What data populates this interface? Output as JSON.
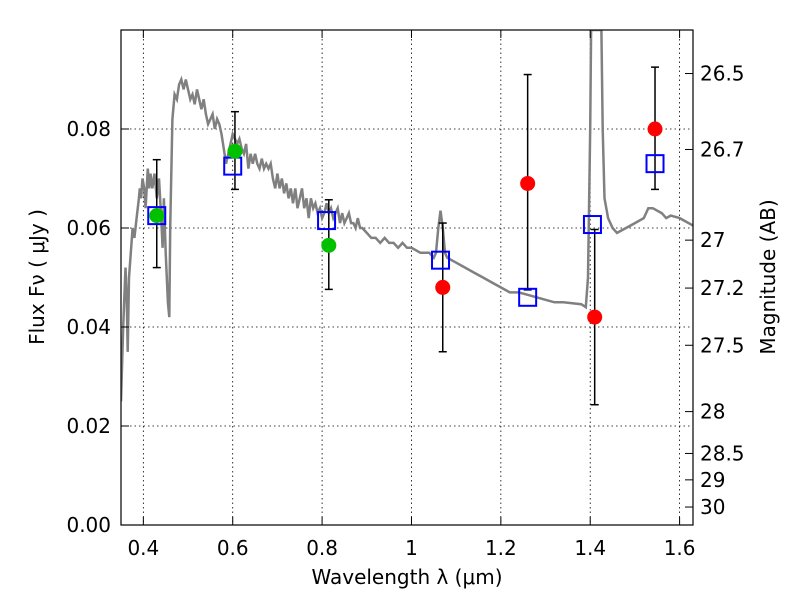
{
  "chart_data": {
    "type": "scatter",
    "xlabel": "Wavelength  λ (μm)",
    "ylabel": "Flux  Fν  ( μJy )",
    "ylabel2": "Magnitude (AB)",
    "xlim": [
      0.35,
      1.63
    ],
    "ylim": [
      0.0,
      0.1
    ],
    "grid": true,
    "x_ticks": [
      {
        "value": 0.4,
        "label": "0.4"
      },
      {
        "value": 0.6,
        "label": "0.6"
      },
      {
        "value": 0.8,
        "label": "0.8"
      },
      {
        "value": 1.0,
        "label": "1"
      },
      {
        "value": 1.2,
        "label": "1.2"
      },
      {
        "value": 1.4,
        "label": "1.4"
      },
      {
        "value": 1.6,
        "label": "1.6"
      }
    ],
    "y_ticks": [
      {
        "value": 0.0,
        "label": "0.00"
      },
      {
        "value": 0.02,
        "label": "0.02"
      },
      {
        "value": 0.04,
        "label": "0.04"
      },
      {
        "value": 0.06,
        "label": "0.06"
      },
      {
        "value": 0.08,
        "label": "0.08"
      }
    ],
    "mag_ticks": [
      {
        "value": 26.5,
        "label": "26.5"
      },
      {
        "value": 26.7,
        "label": "26.7"
      },
      {
        "value": 27.0,
        "label": "27"
      },
      {
        "value": 27.2,
        "label": "27.2"
      },
      {
        "value": 27.5,
        "label": "27.5"
      },
      {
        "value": 28.0,
        "label": "28"
      },
      {
        "value": 28.5,
        "label": "28.5"
      },
      {
        "value": 29.0,
        "label": "29"
      },
      {
        "value": 30.0,
        "label": "30"
      }
    ],
    "model_spectrum": {
      "color": "#808080",
      "points": [
        [
          0.35,
          0.025
        ],
        [
          0.355,
          0.04
        ],
        [
          0.36,
          0.052
        ],
        [
          0.363,
          0.045
        ],
        [
          0.365,
          0.035
        ],
        [
          0.368,
          0.05
        ],
        [
          0.372,
          0.055
        ],
        [
          0.376,
          0.06
        ],
        [
          0.38,
          0.058
        ],
        [
          0.385,
          0.062
        ],
        [
          0.39,
          0.066
        ],
        [
          0.392,
          0.068
        ],
        [
          0.395,
          0.066
        ],
        [
          0.398,
          0.07
        ],
        [
          0.402,
          0.068
        ],
        [
          0.405,
          0.064
        ],
        [
          0.41,
          0.072
        ],
        [
          0.413,
          0.068
        ],
        [
          0.416,
          0.071
        ],
        [
          0.42,
          0.068
        ],
        [
          0.425,
          0.071
        ],
        [
          0.43,
          0.066
        ],
        [
          0.435,
          0.07
        ],
        [
          0.44,
          0.062
        ],
        [
          0.443,
          0.056
        ],
        [
          0.446,
          0.066
        ],
        [
          0.45,
          0.055
        ],
        [
          0.455,
          0.045
        ],
        [
          0.458,
          0.042
        ],
        [
          0.46,
          0.06
        ],
        [
          0.465,
          0.082
        ],
        [
          0.47,
          0.087
        ],
        [
          0.475,
          0.086
        ],
        [
          0.48,
          0.089
        ],
        [
          0.485,
          0.09
        ],
        [
          0.49,
          0.088
        ],
        [
          0.495,
          0.09
        ],
        [
          0.5,
          0.088
        ],
        [
          0.505,
          0.086
        ],
        [
          0.51,
          0.087
        ],
        [
          0.515,
          0.085
        ],
        [
          0.52,
          0.088
        ],
        [
          0.525,
          0.086
        ],
        [
          0.53,
          0.084
        ],
        [
          0.535,
          0.086
        ],
        [
          0.54,
          0.083
        ],
        [
          0.545,
          0.081
        ],
        [
          0.55,
          0.082
        ],
        [
          0.555,
          0.083
        ],
        [
          0.56,
          0.08
        ],
        [
          0.565,
          0.082
        ],
        [
          0.57,
          0.081
        ],
        [
          0.575,
          0.079
        ],
        [
          0.58,
          0.076
        ],
        [
          0.585,
          0.073
        ],
        [
          0.59,
          0.075
        ],
        [
          0.595,
          0.077
        ],
        [
          0.6,
          0.079
        ],
        [
          0.605,
          0.078
        ],
        [
          0.61,
          0.077
        ],
        [
          0.615,
          0.078
        ],
        [
          0.62,
          0.076
        ],
        [
          0.625,
          0.075
        ],
        [
          0.63,
          0.077
        ],
        [
          0.635,
          0.072
        ],
        [
          0.64,
          0.075
        ],
        [
          0.645,
          0.073
        ],
        [
          0.65,
          0.075
        ],
        [
          0.655,
          0.073
        ],
        [
          0.66,
          0.072
        ],
        [
          0.665,
          0.074
        ],
        [
          0.67,
          0.072
        ],
        [
          0.675,
          0.073
        ],
        [
          0.68,
          0.072
        ],
        [
          0.685,
          0.073
        ],
        [
          0.69,
          0.07
        ],
        [
          0.695,
          0.068
        ],
        [
          0.7,
          0.071
        ],
        [
          0.705,
          0.068
        ],
        [
          0.71,
          0.07
        ],
        [
          0.715,
          0.067
        ],
        [
          0.72,
          0.069
        ],
        [
          0.725,
          0.066
        ],
        [
          0.73,
          0.068
        ],
        [
          0.735,
          0.065
        ],
        [
          0.74,
          0.068
        ],
        [
          0.745,
          0.064
        ],
        [
          0.75,
          0.066
        ],
        [
          0.755,
          0.068
        ],
        [
          0.76,
          0.064
        ],
        [
          0.765,
          0.066
        ],
        [
          0.77,
          0.062
        ],
        [
          0.775,
          0.066
        ],
        [
          0.78,
          0.064
        ],
        [
          0.785,
          0.065
        ],
        [
          0.79,
          0.063
        ],
        [
          0.795,
          0.064
        ],
        [
          0.8,
          0.062
        ],
        [
          0.805,
          0.063
        ],
        [
          0.81,
          0.065
        ],
        [
          0.815,
          0.063
        ],
        [
          0.82,
          0.064
        ],
        [
          0.825,
          0.062
        ],
        [
          0.83,
          0.063
        ],
        [
          0.835,
          0.064
        ],
        [
          0.84,
          0.061
        ],
        [
          0.845,
          0.063
        ],
        [
          0.85,
          0.061
        ],
        [
          0.855,
          0.062
        ],
        [
          0.86,
          0.063
        ],
        [
          0.865,
          0.061
        ],
        [
          0.87,
          0.061
        ],
        [
          0.875,
          0.06
        ],
        [
          0.88,
          0.062
        ],
        [
          0.885,
          0.06
        ],
        [
          0.89,
          0.06
        ],
        [
          0.9,
          0.059
        ],
        [
          0.91,
          0.058
        ],
        [
          0.92,
          0.058
        ],
        [
          0.93,
          0.057
        ],
        [
          0.94,
          0.058
        ],
        [
          0.95,
          0.057
        ],
        [
          0.96,
          0.057
        ],
        [
          0.97,
          0.056
        ],
        [
          0.98,
          0.057
        ],
        [
          0.99,
          0.056
        ],
        [
          1.0,
          0.056
        ],
        [
          1.02,
          0.055
        ],
        [
          1.04,
          0.055
        ],
        [
          1.05,
          0.054
        ],
        [
          1.055,
          0.055
        ],
        [
          1.06,
          0.06
        ],
        [
          1.065,
          0.0635
        ],
        [
          1.07,
          0.06
        ],
        [
          1.075,
          0.055
        ],
        [
          1.08,
          0.054
        ],
        [
          1.1,
          0.053
        ],
        [
          1.12,
          0.052
        ],
        [
          1.14,
          0.051
        ],
        [
          1.16,
          0.05
        ],
        [
          1.18,
          0.049
        ],
        [
          1.2,
          0.048
        ],
        [
          1.22,
          0.047
        ],
        [
          1.24,
          0.047
        ],
        [
          1.26,
          0.0465
        ],
        [
          1.28,
          0.046
        ],
        [
          1.3,
          0.0455
        ],
        [
          1.32,
          0.045
        ],
        [
          1.34,
          0.045
        ],
        [
          1.36,
          0.0448
        ],
        [
          1.38,
          0.0446
        ],
        [
          1.39,
          0.044
        ],
        [
          1.395,
          0.05
        ],
        [
          1.4,
          0.08
        ],
        [
          1.402,
          0.1
        ],
        [
          1.425,
          0.1
        ],
        [
          1.428,
          0.08
        ],
        [
          1.432,
          0.066
        ],
        [
          1.44,
          0.062
        ],
        [
          1.45,
          0.06
        ],
        [
          1.46,
          0.059
        ],
        [
          1.48,
          0.06
        ],
        [
          1.5,
          0.061
        ],
        [
          1.52,
          0.062
        ],
        [
          1.53,
          0.064
        ],
        [
          1.54,
          0.064
        ],
        [
          1.56,
          0.063
        ],
        [
          1.57,
          0.062
        ],
        [
          1.58,
          0.0625
        ],
        [
          1.6,
          0.062
        ],
        [
          1.63,
          0.0605
        ]
      ]
    },
    "series": [
      {
        "marker": "circle",
        "color": "#00c000",
        "points": [
          {
            "x": 0.43,
            "y": 0.0625
          },
          {
            "x": 0.605,
            "y": 0.0755
          },
          {
            "x": 0.815,
            "y": 0.0565
          }
        ]
      },
      {
        "marker": "circle",
        "color": "#ff0000",
        "points": [
          {
            "x": 1.07,
            "y": 0.048
          },
          {
            "x": 1.26,
            "y": 0.069
          },
          {
            "x": 1.41,
            "y": 0.042
          },
          {
            "x": 1.545,
            "y": 0.08
          }
        ]
      },
      {
        "marker": "open-square",
        "color": "#0000ff",
        "points": [
          {
            "x": 0.43,
            "y": 0.0625
          },
          {
            "x": 0.6,
            "y": 0.0725
          },
          {
            "x": 0.81,
            "y": 0.0615
          },
          {
            "x": 1.065,
            "y": 0.0535
          },
          {
            "x": 1.26,
            "y": 0.046
          },
          {
            "x": 1.405,
            "y": 0.0607
          },
          {
            "x": 1.545,
            "y": 0.073
          }
        ]
      },
      {
        "marker": "error-bar",
        "color": "#000000",
        "points": [
          {
            "x": 0.43,
            "low": 0.052,
            "high": 0.0738
          },
          {
            "x": 0.605,
            "low": 0.0678,
            "high": 0.0835
          },
          {
            "x": 0.815,
            "low": 0.0476,
            "high": 0.0657
          },
          {
            "x": 1.07,
            "low": 0.035,
            "high": 0.061
          },
          {
            "x": 1.26,
            "low": 0.0475,
            "high": 0.091
          },
          {
            "x": 1.41,
            "low": 0.0243,
            "high": 0.0597
          },
          {
            "x": 1.545,
            "low": 0.0678,
            "high": 0.0925
          }
        ]
      }
    ]
  }
}
